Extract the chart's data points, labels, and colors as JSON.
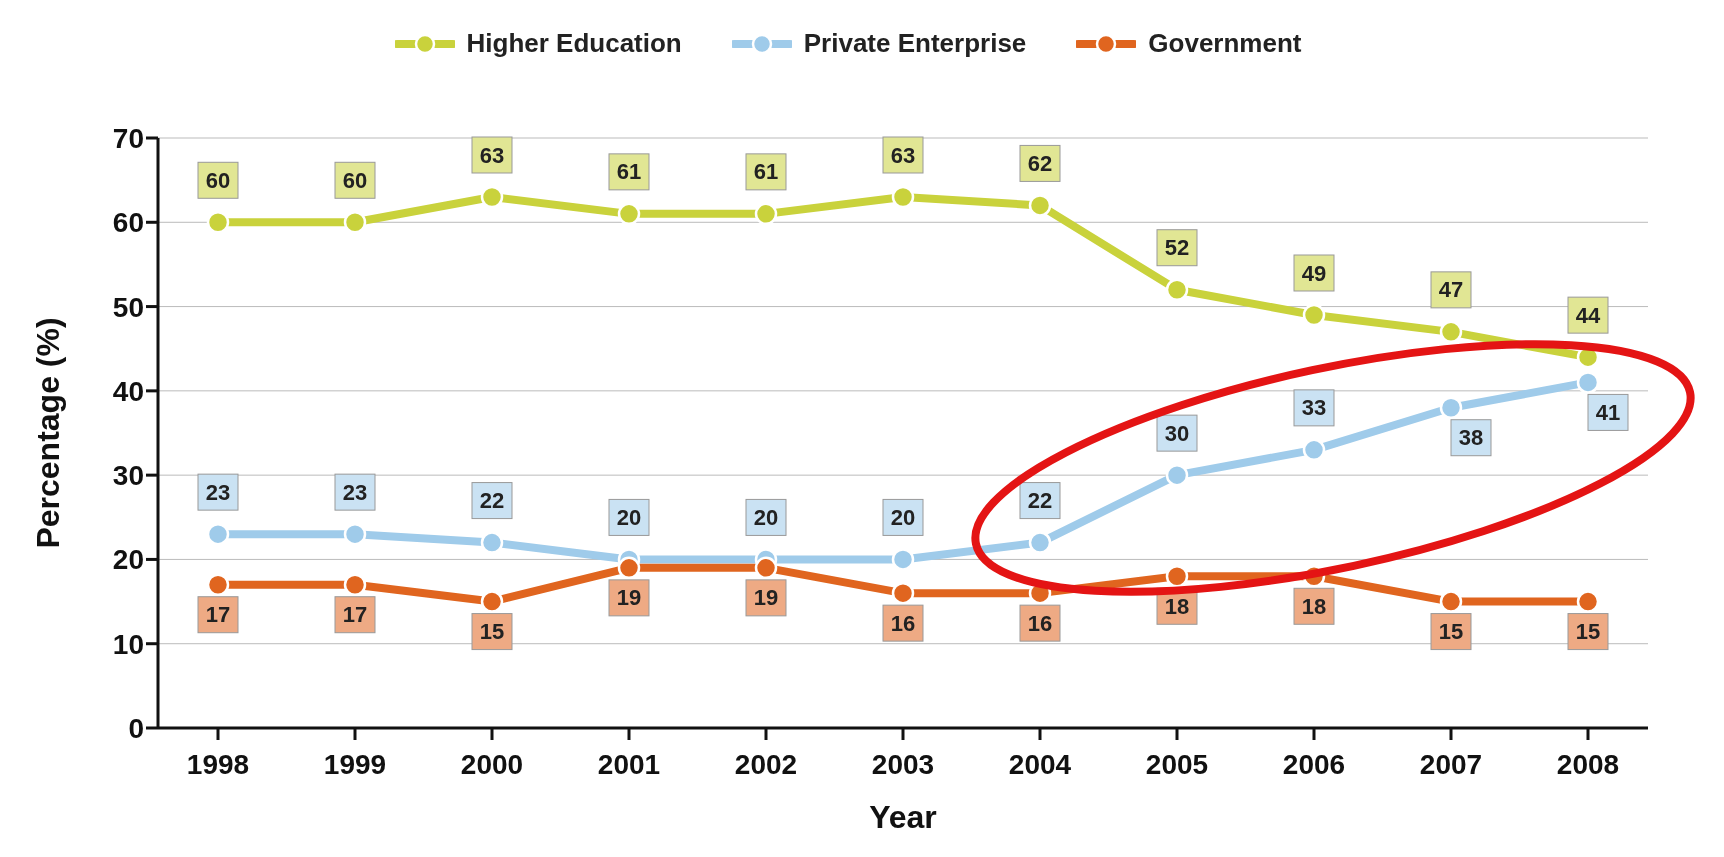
{
  "chart_data": {
    "type": "line",
    "xlabel": "Year",
    "ylabel": "Percentage (%)",
    "categories": [
      "1998",
      "1999",
      "2000",
      "2001",
      "2002",
      "2003",
      "2004",
      "2005",
      "2006",
      "2007",
      "2008"
    ],
    "series": [
      {
        "name": "Higher Education",
        "color": "#c9d23c",
        "values": [
          60,
          60,
          63,
          61,
          61,
          63,
          62,
          52,
          49,
          47,
          44
        ]
      },
      {
        "name": "Private Enterprise",
        "color": "#9fcbea",
        "values": [
          23,
          23,
          22,
          20,
          20,
          20,
          22,
          30,
          33,
          38,
          41
        ]
      },
      {
        "name": "Government",
        "color": "#e0651f",
        "values": [
          17,
          17,
          15,
          19,
          19,
          16,
          16,
          18,
          18,
          15,
          15
        ]
      }
    ],
    "ylim": [
      0,
      70
    ],
    "yticks": [
      0,
      10,
      20,
      30,
      40,
      50,
      60,
      70
    ],
    "grid": "y",
    "legend": "top",
    "marker": "circle",
    "line_style": "solid",
    "data_labels": true
  }
}
